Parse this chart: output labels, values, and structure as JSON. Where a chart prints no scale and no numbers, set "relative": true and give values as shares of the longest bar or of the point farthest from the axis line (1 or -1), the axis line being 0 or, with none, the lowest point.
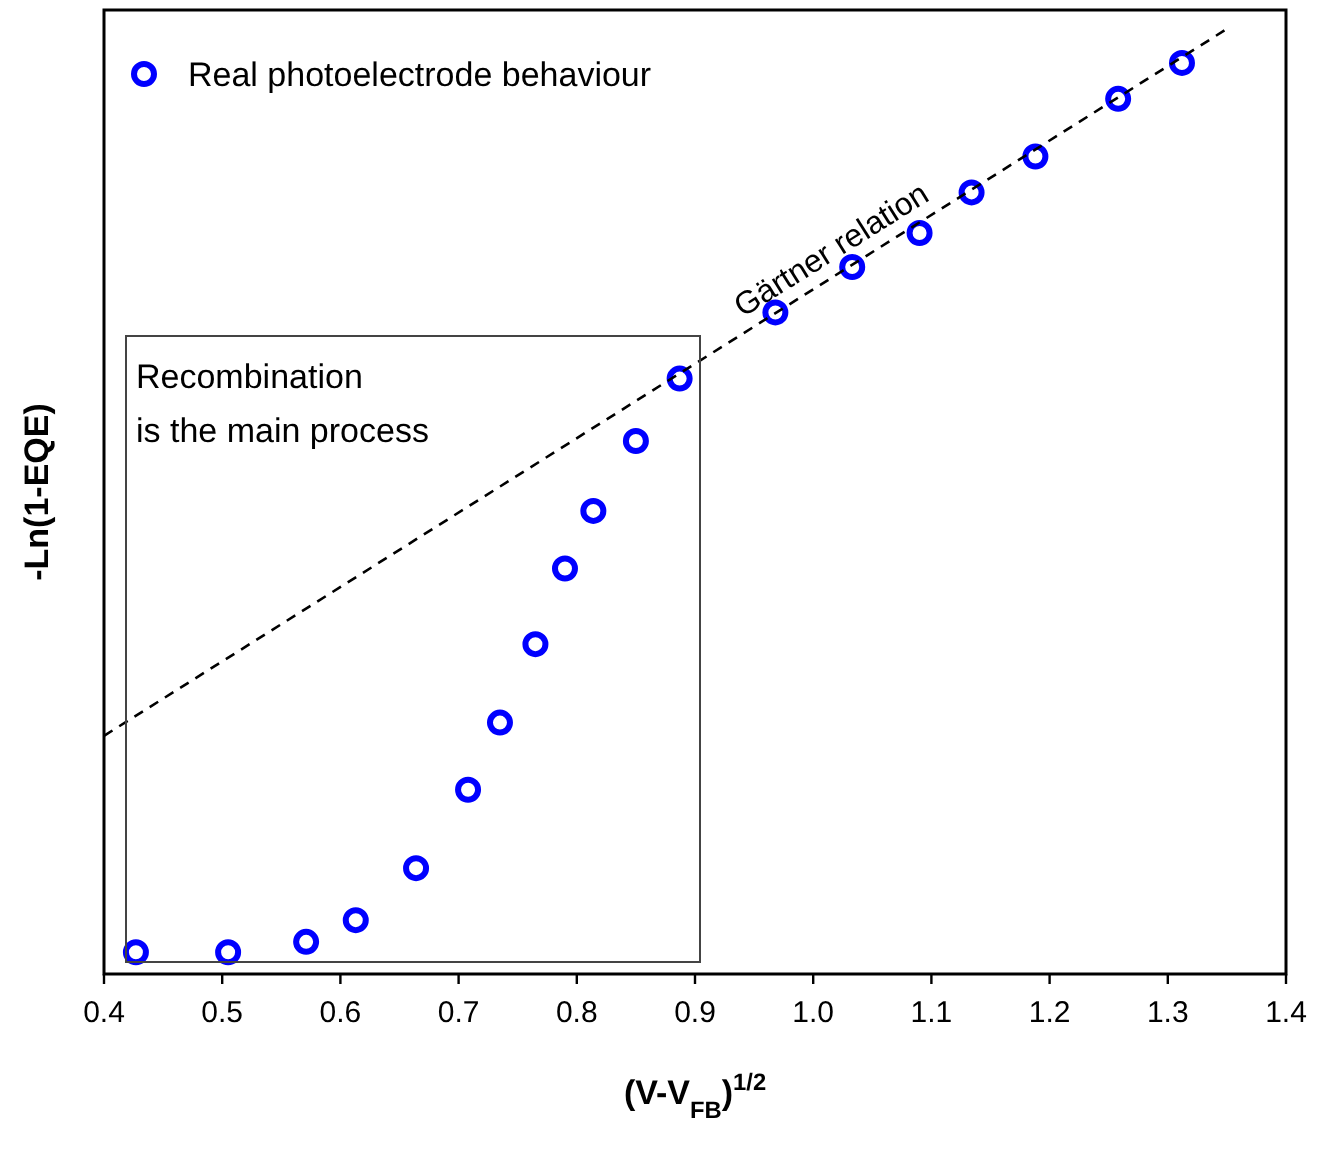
{
  "chart_data": {
    "type": "scatter",
    "relative": true,
    "xlabel": "(V-V$_{FB}$)$^{1/2}$",
    "ylabel": "-Ln(1-EQE)",
    "xlim": [
      0.4,
      1.4
    ],
    "xticks": [
      0.4,
      0.5,
      0.6,
      0.7,
      0.8,
      0.9,
      {
        "value": 1,
        "label": "1.0"
      },
      1.1,
      1.2,
      1.3,
      1.4
    ],
    "tick_labels": "x",
    "grid": false,
    "legend": "top left",
    "series": [
      {
        "name": "Real photoelectrode behaviour",
        "marker": "circle",
        "color": "#0000ff",
        "x": [
          0.427,
          0.505,
          0.571,
          0.613,
          0.664,
          0.708,
          0.735,
          0.765,
          0.79,
          0.814,
          0.85,
          0.887,
          0.968,
          1.033,
          1.09,
          1.134,
          1.188,
          1.258,
          1.312
        ],
        "values": [
          0.023,
          0.023,
          0.034,
          0.057,
          0.112,
          0.195,
          0.266,
          0.349,
          0.429,
          0.49,
          0.564,
          0.63,
          0.7,
          0.748,
          0.784,
          0.827,
          0.865,
          0.926,
          0.964
        ]
      },
      {
        "type": "line",
        "marker": "none",
        "line_style": "dashed",
        "color": "#000000",
        "x": [
          0.4,
          1.35
        ],
        "values": [
          0.252,
          1
        ]
      }
    ],
    "annotations": [
      {
        "text": "Gärtner relation",
        "x": 1.02,
        "y": 0.74
      },
      "Recombination\nis the main process"
    ]
  }
}
